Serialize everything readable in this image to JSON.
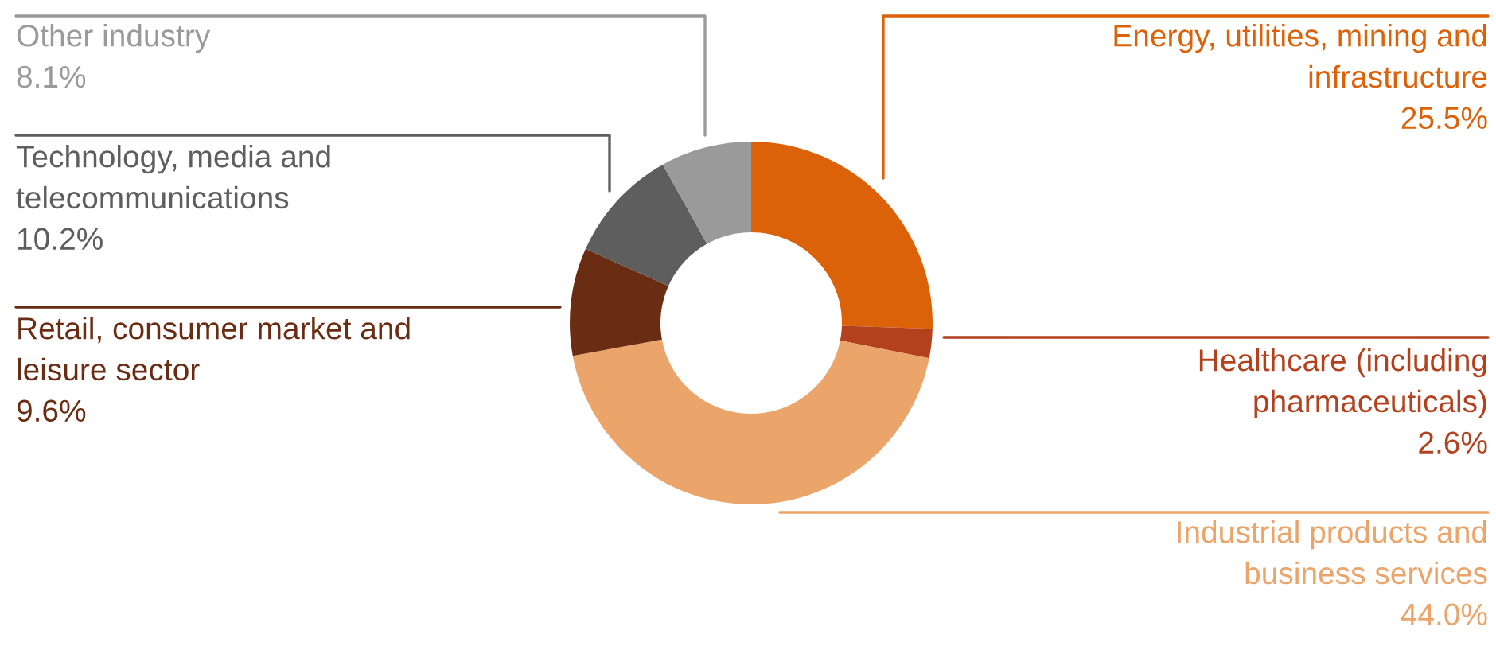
{
  "chart_data": {
    "type": "donut",
    "categories": [
      "Energy, utilities, mining and\ninfrastructure",
      "Healthcare (including\npharmaceuticals)",
      "Industrial products and\nbusiness services",
      "Retail, consumer market and\nleisure sector",
      "Technology, media and\ntelecommunications",
      "Other industry"
    ],
    "values": [
      25.5,
      2.6,
      44.0,
      9.6,
      10.2,
      8.1
    ],
    "value_labels": [
      "25.5%",
      "2.6%",
      "44.0%",
      "9.6%",
      "10.2%",
      "8.1%"
    ],
    "colors": [
      "#dc6209",
      "#b3411e",
      "#eba46a",
      "#6a2d14",
      "#5e5e5e",
      "#9a9a9a"
    ],
    "legend": false
  }
}
